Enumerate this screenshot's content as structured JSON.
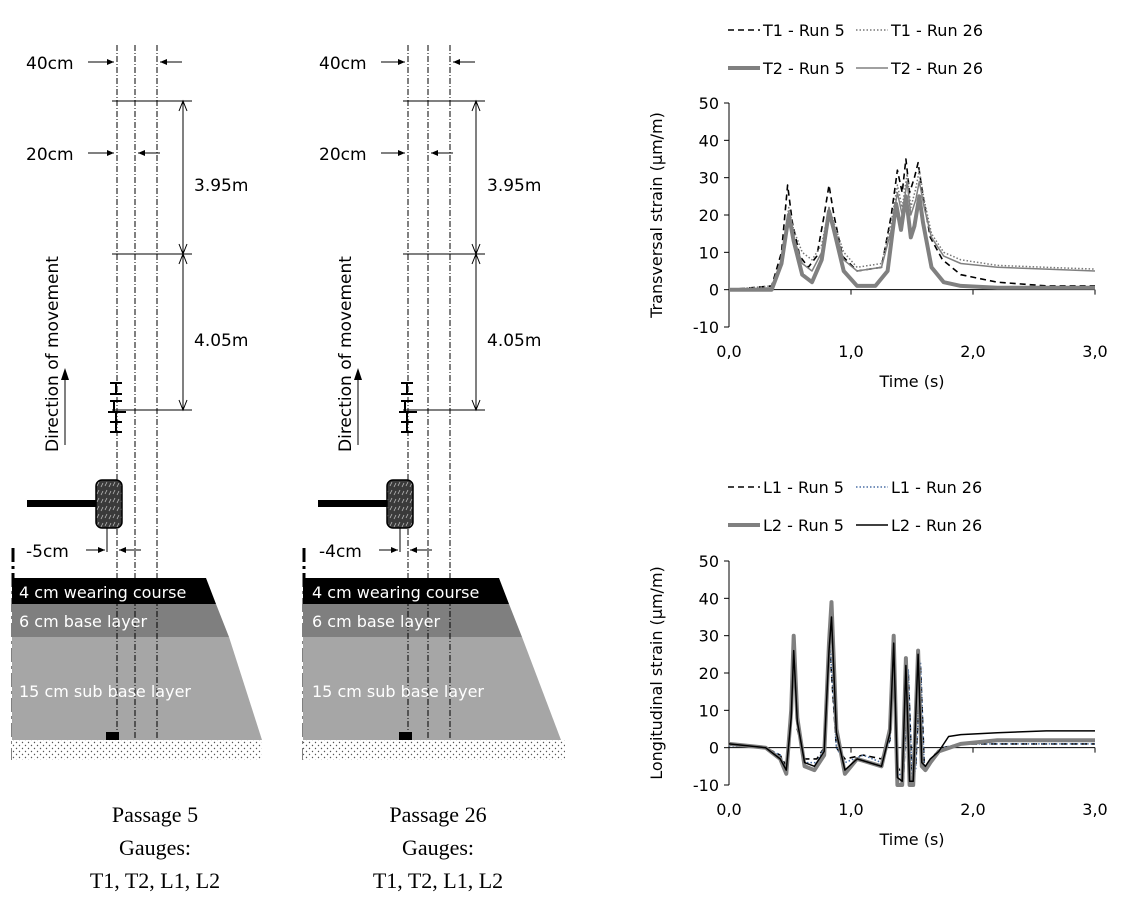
{
  "figure": {
    "panels": [
      {
        "caption": [
          "Passage 5",
          "Gauges:",
          "T1, T2, L1, L2"
        ],
        "offset_label": "-5cm",
        "gap40_label": "40cm",
        "gap20_label": "20cm",
        "len1_label": "3.95m",
        "len2_label": "4.05m",
        "direction_label": "Direction of movement",
        "layers": [
          "4 cm wearing course",
          "6 cm base layer",
          "15 cm sub base layer"
        ]
      },
      {
        "caption": [
          "Passage 26",
          "Gauges:",
          "T1, T2, L1, L2"
        ],
        "offset_label": "-4cm",
        "gap40_label": "40cm",
        "gap20_label": "20cm",
        "len1_label": "3.95m",
        "len2_label": "4.05m",
        "direction_label": "Direction of movement",
        "layers": [
          "4 cm wearing course",
          "6 cm base layer",
          "15 cm sub base layer"
        ]
      }
    ]
  },
  "chart_data": [
    {
      "type": "line",
      "xlabel": "Time (s)",
      "ylabel": "Transversal strain (µm/m)",
      "xlim": [
        0,
        3
      ],
      "ylim": [
        -10,
        50
      ],
      "xticks": [
        "0,0",
        "1,0",
        "2,0",
        "3,0"
      ],
      "yticks": [
        "-10",
        "0",
        "10",
        "20",
        "30",
        "40",
        "50"
      ],
      "legend": "top",
      "series": [
        {
          "name": "T1 - Run 5",
          "color": "#000000",
          "style": "dashed",
          "x": [
            0,
            0.35,
            0.43,
            0.48,
            0.52,
            0.58,
            0.65,
            0.72,
            0.78,
            0.82,
            0.86,
            0.93,
            1.05,
            1.25,
            1.33,
            1.38,
            1.42,
            1.45,
            1.48,
            1.52,
            1.55,
            1.59,
            1.65,
            1.75,
            1.9,
            2.2,
            2.6,
            3.0
          ],
          "values": [
            0,
            1,
            10,
            28,
            18,
            9,
            6,
            9,
            20,
            28,
            20,
            9,
            5,
            6,
            20,
            32,
            26,
            35,
            26,
            30,
            34,
            25,
            14,
            8,
            4,
            2,
            1,
            1
          ]
        },
        {
          "name": "T1 - Run 26",
          "color": "#777777",
          "style": "dotted",
          "x": [
            0,
            0.35,
            0.43,
            0.49,
            0.53,
            0.6,
            0.68,
            0.76,
            0.82,
            0.86,
            0.94,
            1.05,
            1.25,
            1.33,
            1.38,
            1.42,
            1.46,
            1.49,
            1.53,
            1.56,
            1.6,
            1.66,
            1.76,
            1.9,
            2.2,
            2.6,
            3.0
          ],
          "values": [
            0,
            1,
            8,
            22,
            16,
            10,
            8,
            12,
            22,
            18,
            10,
            6,
            7,
            18,
            28,
            22,
            31,
            22,
            27,
            32,
            24,
            15,
            10,
            8,
            6.5,
            6,
            5.5
          ]
        },
        {
          "name": "T2 - Run 5",
          "color": "#808080",
          "style": "solid-thick",
          "x": [
            0,
            0.35,
            0.43,
            0.49,
            0.53,
            0.6,
            0.68,
            0.76,
            0.82,
            0.86,
            0.94,
            1.05,
            1.2,
            1.3,
            1.37,
            1.41,
            1.45,
            1.49,
            1.52,
            1.56,
            1.59,
            1.66,
            1.76,
            1.9,
            2.2,
            2.6,
            3.0
          ],
          "values": [
            0,
            0,
            7,
            20,
            13,
            4,
            2,
            8,
            21,
            16,
            5,
            1,
            1,
            5,
            23,
            16,
            25,
            14,
            17,
            25,
            18,
            6,
            2,
            1,
            0.5,
            0.5,
            0.5
          ]
        },
        {
          "name": "T2 - Run 26",
          "color": "#808080",
          "style": "solid-thin",
          "x": [
            0,
            0.35,
            0.43,
            0.49,
            0.53,
            0.6,
            0.68,
            0.76,
            0.82,
            0.86,
            0.94,
            1.05,
            1.25,
            1.33,
            1.38,
            1.42,
            1.46,
            1.49,
            1.53,
            1.56,
            1.6,
            1.66,
            1.76,
            1.9,
            2.2,
            2.6,
            3.0
          ],
          "values": [
            0,
            0.5,
            7,
            21,
            14,
            7,
            5,
            10,
            22,
            17,
            8,
            5,
            6,
            16,
            26,
            20,
            29,
            20,
            24,
            29,
            22,
            14,
            9,
            7,
            6,
            5.5,
            5
          ]
        }
      ]
    },
    {
      "type": "line",
      "xlabel": "Time (s)",
      "ylabel": "Longitudinal strain (µm/m)",
      "xlim": [
        0,
        3
      ],
      "ylim": [
        -10,
        50
      ],
      "xticks": [
        "0,0",
        "1,0",
        "2,0",
        "3,0"
      ],
      "yticks": [
        "-10",
        "0",
        "10",
        "20",
        "30",
        "40",
        "50"
      ],
      "legend": "top",
      "series": [
        {
          "name": "L1 - Run 5",
          "color": "#000000",
          "style": "dashed",
          "x": [
            0,
            0.3,
            0.42,
            0.47,
            0.5,
            0.53,
            0.56,
            0.62,
            0.72,
            0.78,
            0.82,
            0.85,
            0.88,
            0.95,
            1.1,
            1.25,
            1.32,
            1.35,
            1.38,
            1.43,
            1.47,
            1.5,
            1.53,
            1.57,
            1.6,
            1.64,
            1.68,
            1.75,
            1.9,
            2.2,
            2.6,
            3.0
          ],
          "values": [
            1,
            0,
            -2,
            -5,
            5,
            26,
            5,
            -3,
            -3,
            0,
            30,
            15,
            0,
            -3,
            -2,
            -3,
            2,
            25,
            -5,
            -8,
            20,
            -7,
            -5,
            22,
            -4,
            -4,
            -2,
            0,
            1,
            1,
            1,
            1
          ]
        },
        {
          "name": "L1 - Run 26",
          "color": "#4a6fa5",
          "style": "dotted",
          "x": [
            0,
            0.3,
            0.42,
            0.47,
            0.5,
            0.53,
            0.56,
            0.62,
            0.72,
            0.78,
            0.82,
            0.85,
            0.88,
            0.95,
            1.1,
            1.25,
            1.32,
            1.35,
            1.38,
            1.43,
            1.47,
            1.5,
            1.53,
            1.57,
            1.6,
            1.64,
            1.68,
            1.75,
            1.9,
            2.2,
            2.6,
            3.0
          ],
          "values": [
            0.5,
            0,
            -2,
            -6,
            5,
            27,
            6,
            -4,
            -4,
            0,
            32,
            16,
            0,
            -4,
            -2,
            -4,
            2,
            26,
            -6,
            -9,
            21,
            -8,
            -6,
            23,
            -5,
            -5,
            -3,
            0,
            1,
            1,
            1,
            1
          ]
        },
        {
          "name": "L2 - Run 5",
          "color": "#808080",
          "style": "solid-thick",
          "x": [
            0,
            0.3,
            0.42,
            0.47,
            0.51,
            0.53,
            0.56,
            0.62,
            0.7,
            0.78,
            0.82,
            0.84,
            0.88,
            0.95,
            1.05,
            1.25,
            1.32,
            1.35,
            1.38,
            1.42,
            1.45,
            1.48,
            1.51,
            1.55,
            1.58,
            1.61,
            1.65,
            1.72,
            1.9,
            2.2,
            2.6,
            3.0
          ],
          "values": [
            1,
            0,
            -3,
            -7,
            10,
            30,
            8,
            -5,
            -6,
            -2,
            28,
            39,
            5,
            -7,
            -3,
            -5,
            5,
            30,
            -10,
            -10,
            24,
            -10,
            -10,
            26,
            -5,
            -6,
            -4,
            -1,
            1,
            2,
            2,
            2
          ]
        },
        {
          "name": "L2 - Run 26",
          "color": "#000000",
          "style": "solid-thin",
          "x": [
            0,
            0.3,
            0.42,
            0.47,
            0.51,
            0.53,
            0.56,
            0.62,
            0.7,
            0.78,
            0.82,
            0.84,
            0.88,
            0.95,
            1.05,
            1.25,
            1.32,
            1.35,
            1.38,
            1.42,
            1.45,
            1.48,
            1.51,
            1.55,
            1.58,
            1.61,
            1.65,
            1.72,
            1.8,
            1.9,
            2.2,
            2.6,
            3.0
          ],
          "values": [
            1,
            0,
            -3,
            -6,
            8,
            26,
            7,
            -4,
            -5,
            -1,
            26,
            35,
            4,
            -6,
            -3,
            -5,
            4,
            28,
            -8,
            -9,
            22,
            -9,
            -9,
            25,
            -4,
            -5,
            -3,
            -1,
            3,
            3.5,
            4,
            4.5,
            4.5
          ]
        }
      ]
    }
  ]
}
